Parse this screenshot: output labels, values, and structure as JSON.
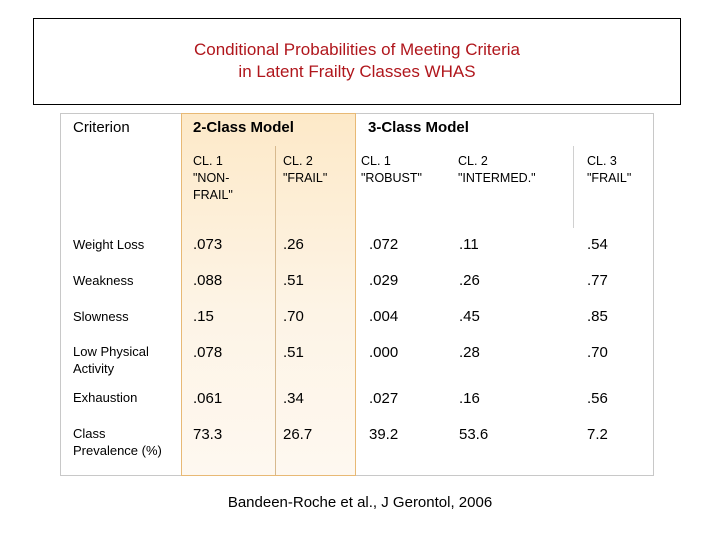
{
  "title": {
    "line1": "Conditional Probabilities of Meeting Criteria",
    "line2": "in Latent Frailty Classes WHAS"
  },
  "table": {
    "criterion_header": "Criterion",
    "model2_header": "2-Class Model",
    "model3_header": "3-Class Model",
    "subheaders": [
      "CL. 1\n\"NON-\nFRAIL\"",
      "CL. 2\n\"FRAIL\"",
      "CL. 1\n\"ROBUST\"",
      "CL. 2\n\"INTERMED.\"",
      "CL. 3\n\"FRAIL\""
    ],
    "rows": [
      {
        "label": "Weight Loss",
        "values": [
          ".073",
          ".26",
          ".072",
          ".11",
          ".54"
        ]
      },
      {
        "label": "Weakness",
        "values": [
          ".088",
          ".51",
          ".029",
          ".26",
          ".77"
        ]
      },
      {
        "label": "Slowness",
        "values": [
          ".15",
          ".70",
          ".004",
          ".45",
          ".85"
        ]
      },
      {
        "label": "Low Physical\nActivity",
        "values": [
          ".078",
          ".51",
          ".000",
          ".28",
          ".70"
        ]
      },
      {
        "label": "Exhaustion",
        "values": [
          ".061",
          ".34",
          ".027",
          ".16",
          ".56"
        ]
      },
      {
        "label": "Class\nPrevalence (%)",
        "values": [
          "73.3",
          "26.7",
          "39.2",
          "53.6",
          "7.2"
        ]
      }
    ]
  },
  "citation": "Bandeen-Roche et al., J Gerontol, 2006"
}
